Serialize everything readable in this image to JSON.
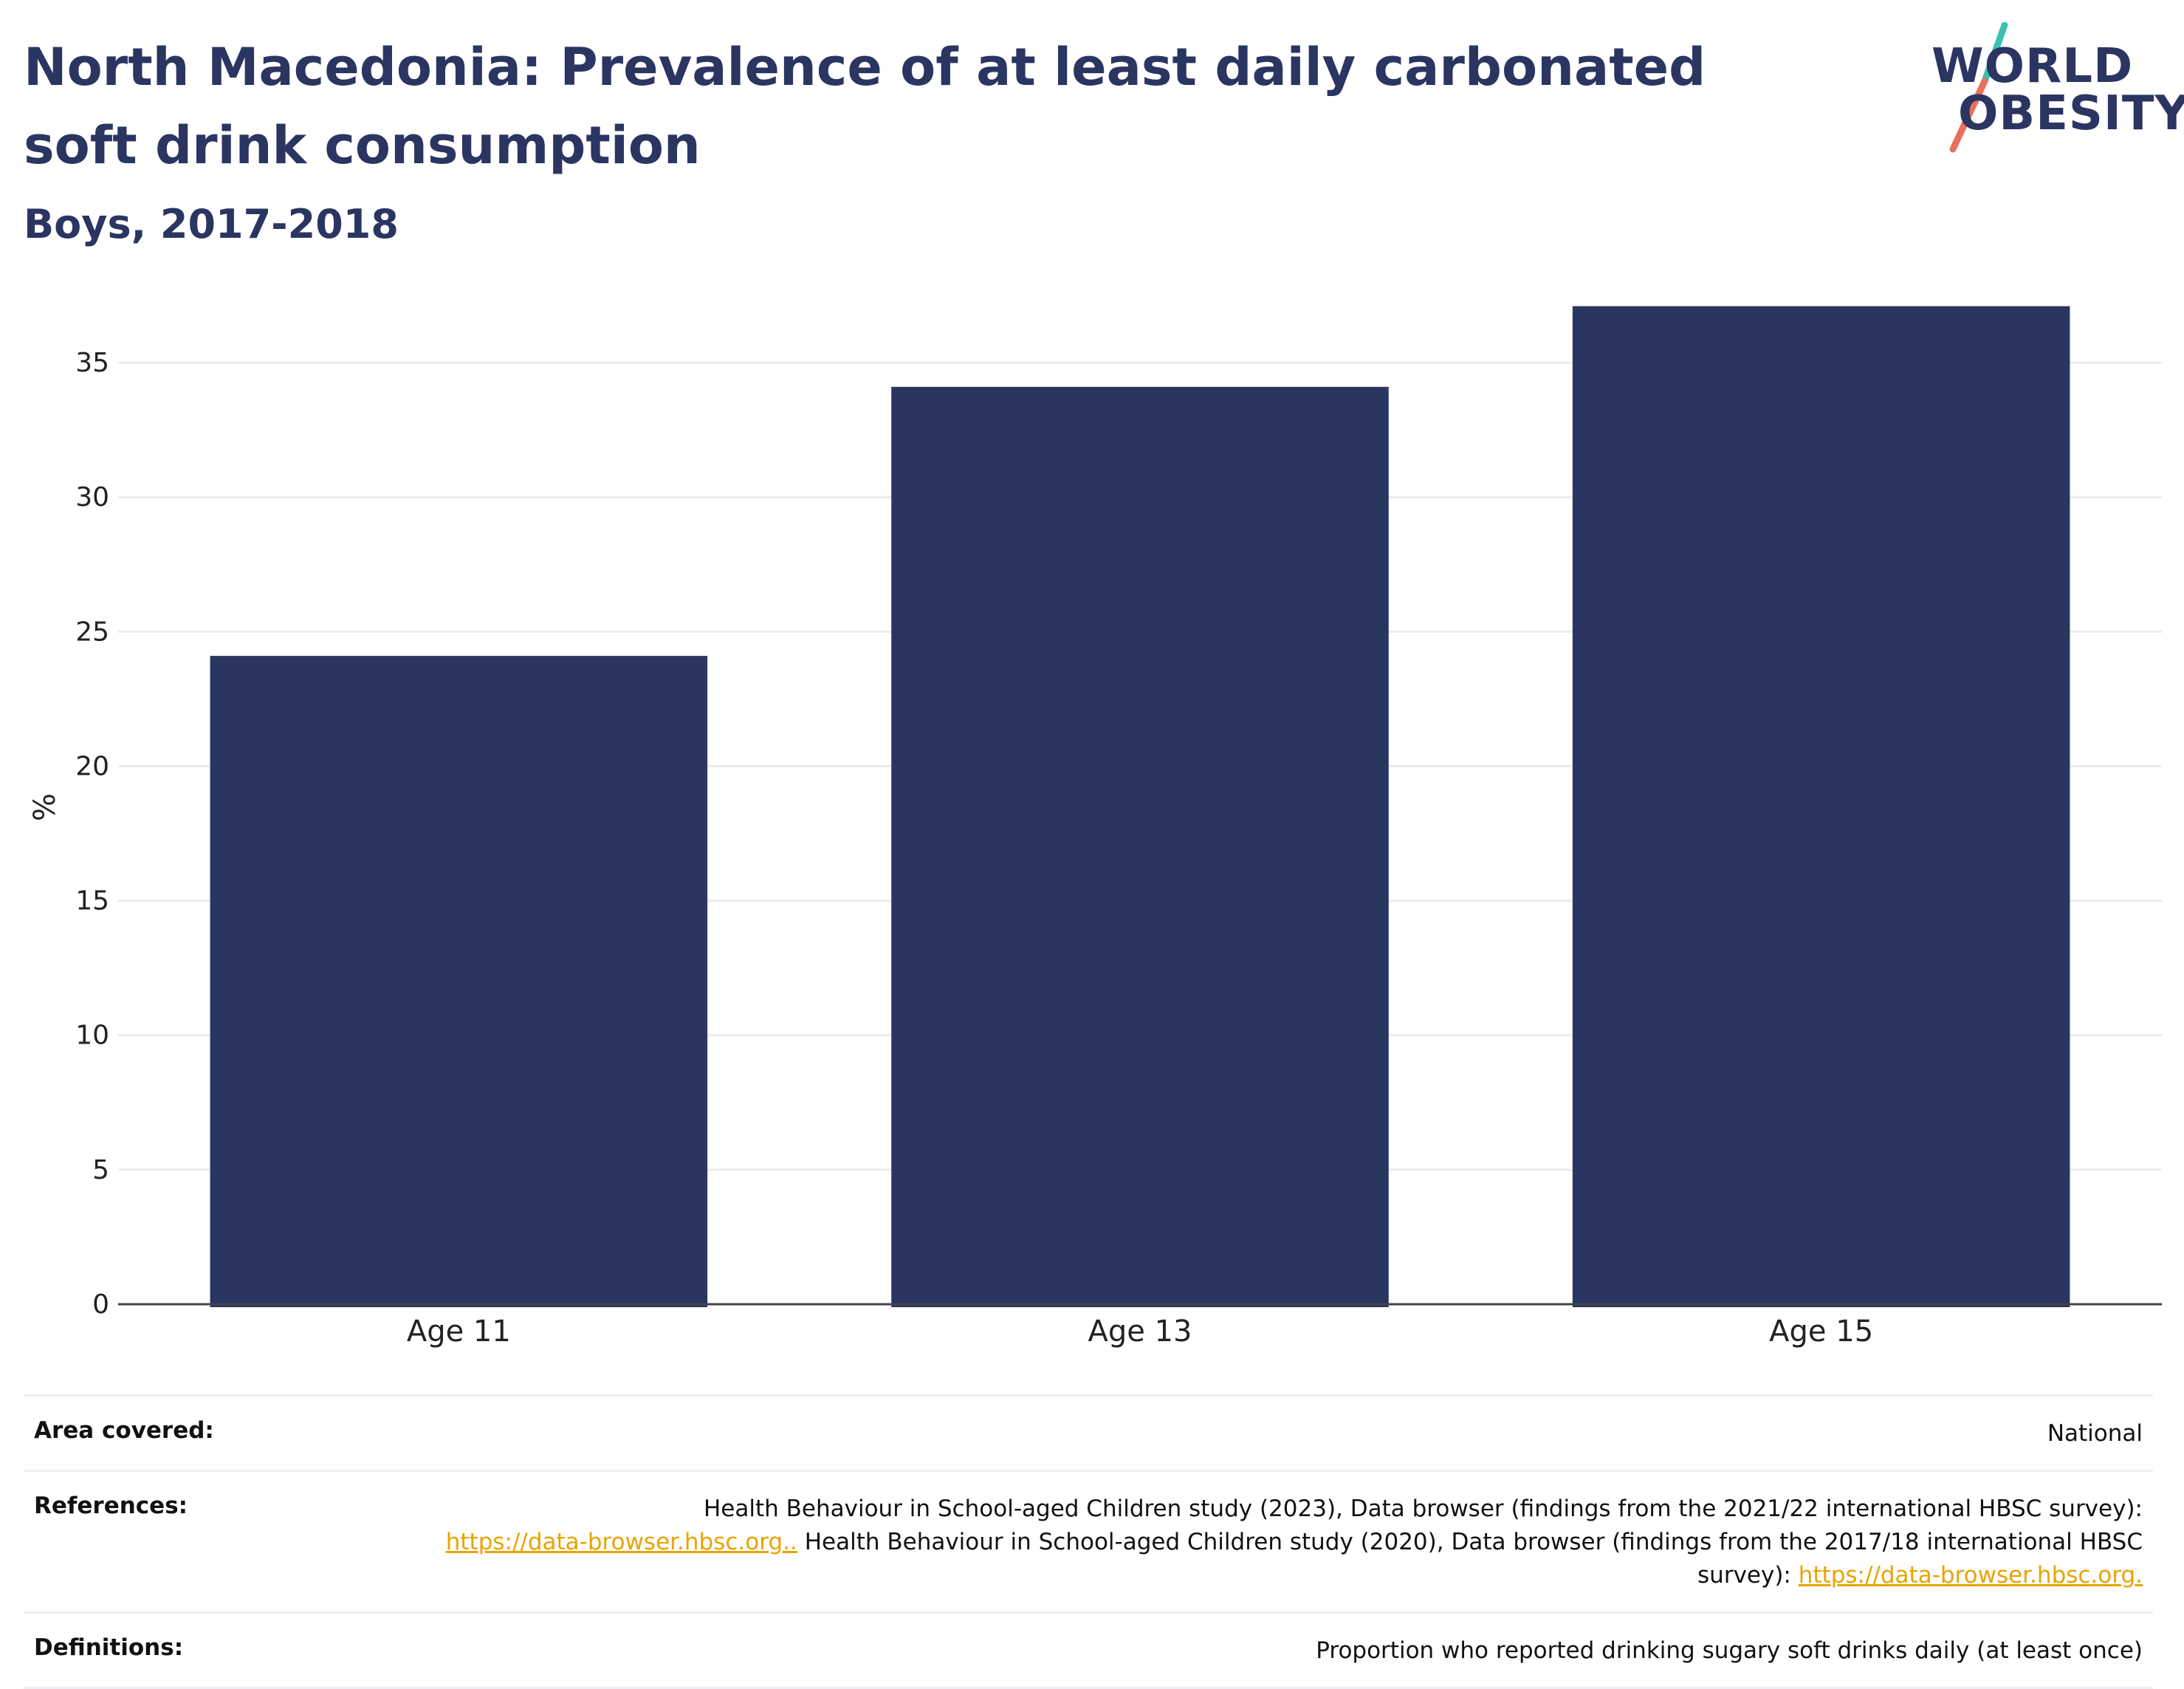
{
  "title": "North Macedonia: Prevalence of at least daily carbonated soft drink consumption",
  "subtitle": "Boys, 2017-2018",
  "logo": {
    "line1": "WORLD",
    "line2": "OBESITY",
    "accent_teal": "#3bbfb3",
    "accent_coral": "#e8705c"
  },
  "chart_data": {
    "type": "bar",
    "categories": [
      "Age 11",
      "Age 13",
      "Age 15"
    ],
    "values": [
      24.1,
      34.1,
      37.1
    ],
    "ylabel": "%",
    "xlabel": "",
    "ylim": [
      0,
      37.5
    ],
    "yticks": [
      0,
      5,
      10,
      15,
      20,
      25,
      30,
      35
    ],
    "grid": true,
    "bar_color": "#2b3561"
  },
  "footer": {
    "area_label": "Area covered:",
    "area_value": "National",
    "references_label": "References:",
    "references_text1": "Health Behaviour in School-aged Children study (2023), Data browser (findings from the 2021/22 international HBSC survey):",
    "references_link1": "https://data-browser.hbsc.org..",
    "references_text2": "Health Behaviour in School-aged Children study (2020), Data browser (findings from the 2017/18 international HBSC survey):",
    "references_link2": "https://data-browser.hbsc.org.",
    "definitions_label": "Definitions:",
    "definitions_value": "Proportion who reported drinking sugary soft drinks daily (at least once)"
  }
}
